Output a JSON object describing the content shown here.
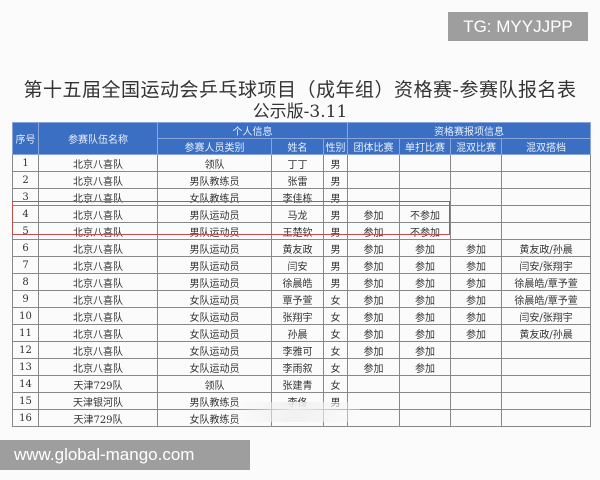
{
  "watermark_top": "TG: MYYJJPP",
  "watermark_bottom": "www.global-mango.com",
  "title": "第十五届全国运动会乒乓球项目（成年组）资格赛-参赛队报名表",
  "subtitle": "公示版-3.11",
  "headers": {
    "seq": "序号",
    "team": "参赛队伍名称",
    "personal": "个人信息",
    "qual": "资格赛报项信息",
    "category": "参赛人员类别",
    "name": "姓名",
    "gender": "性别",
    "team_event": "团体比赛",
    "singles": "单打比赛",
    "mixed": "混双比赛",
    "partner": "混双搭档"
  },
  "rows": [
    [
      "1",
      "北京八喜队",
      "领队",
      "丁丁",
      "男",
      "",
      "",
      "",
      ""
    ],
    [
      "2",
      "北京八喜队",
      "男队教练员",
      "张雷",
      "男",
      "",
      "",
      "",
      ""
    ],
    [
      "3",
      "北京八喜队",
      "女队教练员",
      "李佳栋",
      "男",
      "",
      "",
      "",
      ""
    ],
    [
      "4",
      "北京八喜队",
      "男队运动员",
      "马龙",
      "男",
      "参加",
      "不参加",
      "",
      ""
    ],
    [
      "5",
      "北京八喜队",
      "男队运动员",
      "王楚钦",
      "男",
      "参加",
      "不参加",
      "",
      ""
    ],
    [
      "6",
      "北京八喜队",
      "男队运动员",
      "黄友政",
      "男",
      "参加",
      "参加",
      "参加",
      "黄友政/孙晨"
    ],
    [
      "7",
      "北京八喜队",
      "男队运动员",
      "闫安",
      "男",
      "参加",
      "参加",
      "参加",
      "闫安/张翔宇"
    ],
    [
      "8",
      "北京八喜队",
      "男队运动员",
      "徐晨皓",
      "男",
      "参加",
      "参加",
      "参加",
      "徐晨皓/覃予萱"
    ],
    [
      "9",
      "北京八喜队",
      "女队运动员",
      "覃予萱",
      "女",
      "参加",
      "参加",
      "参加",
      "徐晨皓/覃予萱"
    ],
    [
      "10",
      "北京八喜队",
      "女队运动员",
      "张翔宇",
      "女",
      "参加",
      "参加",
      "参加",
      "闫安/张翔宇"
    ],
    [
      "11",
      "北京八喜队",
      "女队运动员",
      "孙晨",
      "女",
      "参加",
      "参加",
      "参加",
      "黄友政/孙晨"
    ],
    [
      "12",
      "北京八喜队",
      "女队运动员",
      "李雅可",
      "女",
      "参加",
      "参加",
      "",
      ""
    ],
    [
      "13",
      "北京八喜队",
      "女队运动员",
      "李雨叙",
      "女",
      "参加",
      "参加",
      "",
      ""
    ],
    [
      "14",
      "天津729队",
      "领队",
      "张建青",
      "女",
      "",
      "",
      "",
      ""
    ],
    [
      "15",
      "天津银河队",
      "男队教练员",
      "李佟",
      "男",
      "",
      "",
      "",
      ""
    ],
    [
      "16",
      "天津729队",
      "女队教练员",
      "",
      "",
      "",
      "",
      "",
      ""
    ]
  ],
  "highlight_color": "#c0504d",
  "header_color": "#3a6fc4"
}
